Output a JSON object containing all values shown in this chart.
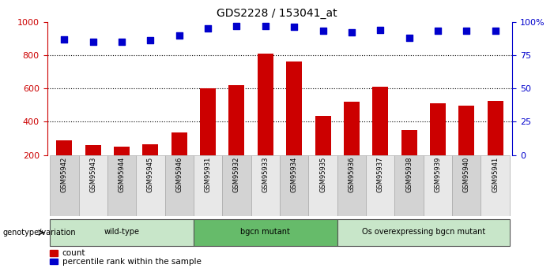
{
  "title": "GDS2228 / 153041_at",
  "samples": [
    "GSM95942",
    "GSM95943",
    "GSM95944",
    "GSM95945",
    "GSM95946",
    "GSM95931",
    "GSM95932",
    "GSM95933",
    "GSM95934",
    "GSM95935",
    "GSM95936",
    "GSM95937",
    "GSM95938",
    "GSM95939",
    "GSM95940",
    "GSM95941"
  ],
  "counts": [
    290,
    260,
    250,
    265,
    335,
    600,
    620,
    810,
    760,
    435,
    520,
    610,
    350,
    510,
    495,
    525
  ],
  "percentiles": [
    87,
    85,
    85,
    86,
    90,
    95,
    97,
    97,
    96,
    93,
    92,
    94,
    88,
    93,
    93,
    93
  ],
  "groups": [
    {
      "label": "wild-type",
      "start": 0,
      "end": 5,
      "color": "#c8e6c9"
    },
    {
      "label": "bgcn mutant",
      "start": 5,
      "end": 10,
      "color": "#66bb6a"
    },
    {
      "label": "Os overexpressing bgcn mutant",
      "start": 10,
      "end": 16,
      "color": "#c8e6c9"
    }
  ],
  "bar_color": "#cc0000",
  "dot_color": "#0000cc",
  "ylim_left": [
    200,
    1000
  ],
  "ylim_right": [
    0,
    100
  ],
  "yticks_left": [
    200,
    400,
    600,
    800,
    1000
  ],
  "yticks_right": [
    0,
    25,
    50,
    75,
    100
  ],
  "yticklabels_right": [
    "0",
    "25",
    "50",
    "75",
    "100%"
  ],
  "grid_values": [
    400,
    600,
    800
  ],
  "legend_count_label": "count",
  "legend_pct_label": "percentile rank within the sample",
  "genotype_label": "genotype/variation",
  "label_bg_color": "#d3d3d3",
  "label_bg_color_alt": "#e8e8e8"
}
